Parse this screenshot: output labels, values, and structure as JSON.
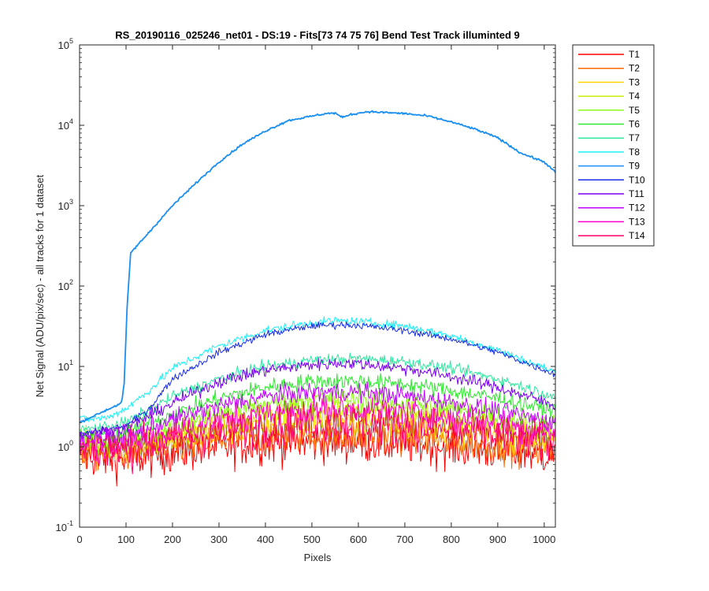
{
  "chart_data": {
    "type": "line",
    "title": "RS_20190116_025246_net01 - DS:19 - Fits[73  74  75  76]   Bend Test      Track illuminted 9",
    "xlabel": "Pixels",
    "ylabel": "Net Signal (ADU/pix/sec) - all tracks for 1 dataset",
    "xlim": [
      0,
      1024
    ],
    "ylim": [
      0.1,
      100000
    ],
    "yscale": "log",
    "grid": false,
    "legend_placement": "outside-right-top",
    "x_ticks": [
      "0",
      "100",
      "200",
      "300",
      "400",
      "500",
      "600",
      "700",
      "800",
      "900",
      "1000"
    ],
    "y_ticks": [
      {
        "base": "10",
        "exp": "-1"
      },
      {
        "base": "10",
        "exp": "0"
      },
      {
        "base": "10",
        "exp": "1"
      },
      {
        "base": "10",
        "exp": "2"
      },
      {
        "base": "10",
        "exp": "3"
      },
      {
        "base": "10",
        "exp": "4"
      },
      {
        "base": "10",
        "exp": "5"
      }
    ],
    "series": [
      {
        "name": "T1",
        "color": "#ff0000",
        "noise": 0.3,
        "points": [
          [
            0,
            0.75
          ],
          [
            100,
            0.7
          ],
          [
            200,
            0.85
          ],
          [
            300,
            1.0
          ],
          [
            400,
            1.1
          ],
          [
            500,
            1.15
          ],
          [
            600,
            1.15
          ],
          [
            700,
            1.1
          ],
          [
            800,
            1.0
          ],
          [
            900,
            0.9
          ],
          [
            1024,
            0.8
          ]
        ]
      },
      {
        "name": "T2",
        "color": "#ff6a00",
        "noise": 0.26,
        "points": [
          [
            0,
            0.85
          ],
          [
            100,
            0.85
          ],
          [
            200,
            1.0
          ],
          [
            300,
            1.2
          ],
          [
            400,
            1.35
          ],
          [
            500,
            1.45
          ],
          [
            600,
            1.45
          ],
          [
            700,
            1.35
          ],
          [
            800,
            1.2
          ],
          [
            900,
            1.05
          ],
          [
            1024,
            0.9
          ]
        ]
      },
      {
        "name": "T3",
        "color": "#ffd400",
        "noise": 0.22,
        "points": [
          [
            0,
            1.0
          ],
          [
            100,
            1.0
          ],
          [
            200,
            1.25
          ],
          [
            300,
            1.6
          ],
          [
            400,
            1.9
          ],
          [
            500,
            2.1
          ],
          [
            600,
            2.1
          ],
          [
            700,
            1.95
          ],
          [
            800,
            1.7
          ],
          [
            900,
            1.4
          ],
          [
            1024,
            1.15
          ]
        ]
      },
      {
        "name": "T4",
        "color": "#ccf000",
        "noise": 0.2,
        "points": [
          [
            0,
            1.1
          ],
          [
            100,
            1.1
          ],
          [
            200,
            1.45
          ],
          [
            300,
            2.0
          ],
          [
            400,
            2.5
          ],
          [
            500,
            2.8
          ],
          [
            600,
            2.8
          ],
          [
            700,
            2.6
          ],
          [
            800,
            2.2
          ],
          [
            900,
            1.8
          ],
          [
            1024,
            1.4
          ]
        ]
      },
      {
        "name": "T5",
        "color": "#8cff1a",
        "noise": 0.17,
        "points": [
          [
            0,
            1.15
          ],
          [
            100,
            1.25
          ],
          [
            200,
            1.8
          ],
          [
            300,
            2.6
          ],
          [
            400,
            3.4
          ],
          [
            500,
            3.9
          ],
          [
            600,
            3.9
          ],
          [
            700,
            3.5
          ],
          [
            800,
            3.0
          ],
          [
            900,
            2.4
          ],
          [
            1024,
            1.8
          ]
        ]
      },
      {
        "name": "T6",
        "color": "#2ee82e",
        "noise": 0.12,
        "points": [
          [
            0,
            1.3
          ],
          [
            100,
            1.5
          ],
          [
            200,
            2.5
          ],
          [
            300,
            4.0
          ],
          [
            400,
            5.5
          ],
          [
            500,
            6.5
          ],
          [
            600,
            6.6
          ],
          [
            700,
            6.0
          ],
          [
            800,
            5.0
          ],
          [
            900,
            4.0
          ],
          [
            1024,
            2.8
          ]
        ]
      },
      {
        "name": "T7",
        "color": "#2ee8a0",
        "noise": 0.08,
        "points": [
          [
            0,
            1.6
          ],
          [
            100,
            2.0
          ],
          [
            200,
            4.2
          ],
          [
            300,
            7.0
          ],
          [
            400,
            10.0
          ],
          [
            500,
            12.0
          ],
          [
            600,
            12.5
          ],
          [
            700,
            11.5
          ],
          [
            800,
            9.5
          ],
          [
            900,
            7.0
          ],
          [
            1024,
            4.2
          ]
        ]
      },
      {
        "name": "T8",
        "color": "#1ff0f5",
        "noise": 0.06,
        "points": [
          [
            0,
            2.2
          ],
          [
            60,
            2.3
          ],
          [
            100,
            3.0
          ],
          [
            150,
            5.0
          ],
          [
            200,
            9.5
          ],
          [
            300,
            18.0
          ],
          [
            400,
            28.0
          ],
          [
            500,
            35.0
          ],
          [
            550,
            37.0
          ],
          [
            600,
            36.0
          ],
          [
            700,
            32.0
          ],
          [
            800,
            24.0
          ],
          [
            900,
            16.0
          ],
          [
            1024,
            8.5
          ]
        ]
      },
      {
        "name": "T9",
        "color": "#1b8ff0",
        "noise": 0.015,
        "points": [
          [
            0,
            2.0
          ],
          [
            90,
            3.5
          ],
          [
            96,
            6.0
          ],
          [
            102,
            50.0
          ],
          [
            110,
            260.0
          ],
          [
            120,
            300.0
          ],
          [
            150,
            470.0
          ],
          [
            200,
            1000.0
          ],
          [
            250,
            1900.0
          ],
          [
            300,
            3500.0
          ],
          [
            350,
            5800.0
          ],
          [
            400,
            8500.0
          ],
          [
            450,
            11500.0
          ],
          [
            500,
            13000.0
          ],
          [
            530,
            14000.0
          ],
          [
            550,
            14200.0
          ],
          [
            565,
            12500.0
          ],
          [
            580,
            13500.0
          ],
          [
            620,
            14800.0
          ],
          [
            700,
            14000.0
          ],
          [
            750,
            13000.0
          ],
          [
            800,
            11000.0
          ],
          [
            850,
            9000.0
          ],
          [
            900,
            7000.0
          ],
          [
            950,
            4500.0
          ],
          [
            1000,
            3500.0
          ],
          [
            1024,
            2600.0
          ]
        ]
      },
      {
        "name": "T10",
        "color": "#1a2ee6",
        "noise": 0.05,
        "points": [
          [
            0,
            1.4
          ],
          [
            100,
            1.8
          ],
          [
            150,
            3.0
          ],
          [
            200,
            7.0
          ],
          [
            300,
            15.0
          ],
          [
            400,
            25.0
          ],
          [
            500,
            32.0
          ],
          [
            560,
            33.0
          ],
          [
            600,
            32.5
          ],
          [
            700,
            28.0
          ],
          [
            800,
            22.0
          ],
          [
            900,
            15.0
          ],
          [
            1024,
            8.0
          ]
        ]
      },
      {
        "name": "T11",
        "color": "#7a00f0",
        "noise": 0.09,
        "points": [
          [
            0,
            1.4
          ],
          [
            100,
            1.7
          ],
          [
            200,
            3.5
          ],
          [
            300,
            6.5
          ],
          [
            400,
            9.0
          ],
          [
            500,
            10.5
          ],
          [
            560,
            11.0
          ],
          [
            600,
            10.8
          ],
          [
            700,
            9.5
          ],
          [
            800,
            7.5
          ],
          [
            900,
            5.5
          ],
          [
            1024,
            3.3
          ]
        ]
      },
      {
        "name": "T12",
        "color": "#c000ff",
        "noise": 0.14,
        "points": [
          [
            0,
            1.2
          ],
          [
            100,
            1.3
          ],
          [
            200,
            2.2
          ],
          [
            300,
            3.2
          ],
          [
            400,
            4.2
          ],
          [
            500,
            4.8
          ],
          [
            600,
            4.8
          ],
          [
            700,
            4.3
          ],
          [
            800,
            3.6
          ],
          [
            900,
            2.8
          ],
          [
            1024,
            2.0
          ]
        ]
      },
      {
        "name": "T13",
        "color": "#ff00cc",
        "noise": 0.2,
        "points": [
          [
            0,
            1.1
          ],
          [
            100,
            1.1
          ],
          [
            200,
            1.5
          ],
          [
            300,
            2.1
          ],
          [
            400,
            2.6
          ],
          [
            500,
            2.9
          ],
          [
            600,
            2.9
          ],
          [
            700,
            2.7
          ],
          [
            800,
            2.3
          ],
          [
            900,
            1.9
          ],
          [
            1024,
            1.5
          ]
        ]
      },
      {
        "name": "T14",
        "color": "#ff0066",
        "noise": 0.3,
        "points": [
          [
            0,
            0.95
          ],
          [
            100,
            0.95
          ],
          [
            200,
            1.2
          ],
          [
            300,
            1.5
          ],
          [
            400,
            1.8
          ],
          [
            500,
            2.0
          ],
          [
            600,
            2.0
          ],
          [
            700,
            1.85
          ],
          [
            800,
            1.6
          ],
          [
            900,
            1.35
          ],
          [
            1024,
            1.1
          ]
        ]
      }
    ]
  }
}
